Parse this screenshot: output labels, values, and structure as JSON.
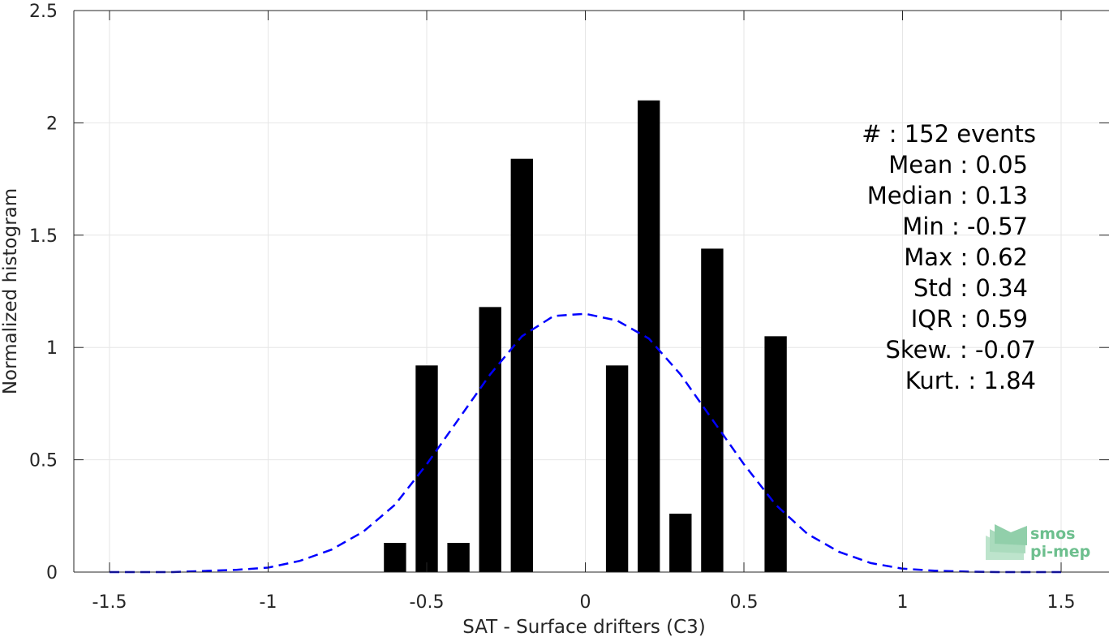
{
  "chart_data": {
    "type": "bar",
    "xlabel": "SAT - Surface drifters (C3)",
    "ylabel": "Normalized histogram",
    "xlim": [
      -1.5,
      1.5
    ],
    "ylim": [
      0,
      2.5
    ],
    "x_ticks": [
      -1.5,
      -1,
      -0.5,
      0,
      0.5,
      1,
      1.5
    ],
    "x_tick_labels": [
      "-1.5",
      "-1",
      "-0.5",
      "0",
      "0.5",
      "1",
      "1.5"
    ],
    "y_ticks": [
      0,
      0.5,
      1,
      1.5,
      2,
      2.5
    ],
    "y_tick_labels": [
      "0",
      "0.5",
      "1",
      "1.5",
      "2",
      "2.5"
    ],
    "grid": true,
    "bar_width": 0.07,
    "bars": [
      {
        "x": -0.6,
        "value": 0.13
      },
      {
        "x": -0.5,
        "value": 0.92
      },
      {
        "x": -0.4,
        "value": 0.13
      },
      {
        "x": -0.3,
        "value": 1.18
      },
      {
        "x": -0.2,
        "value": 1.84
      },
      {
        "x": 0.1,
        "value": 0.92
      },
      {
        "x": 0.2,
        "value": 2.1
      },
      {
        "x": 0.3,
        "value": 0.26
      },
      {
        "x": 0.4,
        "value": 1.44
      },
      {
        "x": 0.6,
        "value": 1.05
      }
    ],
    "bar_color": "#000000",
    "fit_curve": {
      "style": "dashed",
      "color": "#0000ff",
      "x": [
        -1.5,
        -1.4,
        -1.3,
        -1.2,
        -1.1,
        -1.0,
        -0.9,
        -0.8,
        -0.7,
        -0.6,
        -0.5,
        -0.4,
        -0.3,
        -0.2,
        -0.1,
        0.0,
        0.1,
        0.2,
        0.3,
        0.4,
        0.5,
        0.6,
        0.7,
        0.8,
        0.9,
        1.0,
        1.1,
        1.2,
        1.3,
        1.4,
        1.5
      ],
      "y": [
        0.0,
        0.0,
        0.0,
        0.005,
        0.01,
        0.02,
        0.05,
        0.1,
        0.18,
        0.3,
        0.48,
        0.68,
        0.88,
        1.05,
        1.14,
        1.15,
        1.12,
        1.04,
        0.88,
        0.68,
        0.48,
        0.3,
        0.17,
        0.09,
        0.04,
        0.015,
        0.006,
        0.002,
        0.0,
        0.0,
        0.0
      ]
    }
  },
  "stats": [
    "#  : 152 events",
    "Mean : 0.05",
    "Median : 0.13",
    "Min : -0.57",
    "Max : 0.62",
    "Std : 0.34",
    "IQR : 0.59",
    "Skew. : -0.07",
    "Kurt. : 1.84"
  ],
  "logo": {
    "line1": "smos",
    "line2": "pi-mep",
    "color": "#6dbf8e"
  }
}
